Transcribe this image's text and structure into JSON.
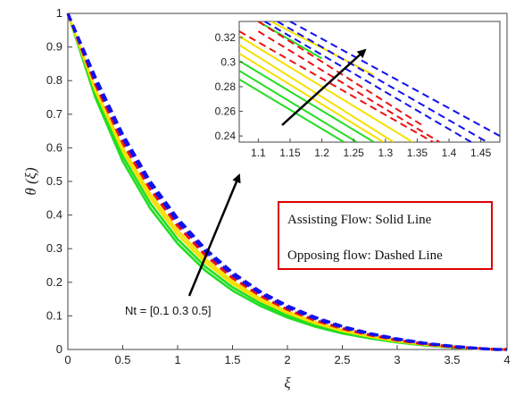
{
  "chart_data": {
    "type": "line",
    "xlabel": "ξ",
    "ylabel": "θ (ξ)",
    "xlim": [
      0,
      4
    ],
    "ylim": [
      0,
      1
    ],
    "xticks": [
      "0",
      "0.5",
      "1",
      "1.5",
      "2",
      "2.5",
      "3",
      "3.5",
      "4"
    ],
    "yticks": [
      "0",
      "0.1",
      "0.2",
      "0.3",
      "0.4",
      "0.5",
      "0.6",
      "0.7",
      "0.8",
      "0.9",
      "1"
    ],
    "x": [
      0,
      0.25,
      0.5,
      0.75,
      1,
      1.25,
      1.5,
      1.75,
      2,
      2.25,
      2.5,
      2.75,
      3,
      3.25,
      3.5,
      3.75,
      3.9,
      4
    ],
    "series": [
      {
        "style": "solid",
        "color": "#22dd22",
        "values": [
          1.0,
          0.75,
          0.56,
          0.42,
          0.315,
          0.235,
          0.175,
          0.13,
          0.095,
          0.068,
          0.048,
          0.033,
          0.021,
          0.012,
          0.006,
          0.002,
          0.0,
          0.0
        ]
      },
      {
        "style": "solid",
        "color": "#22dd22",
        "values": [
          1.0,
          0.76,
          0.575,
          0.435,
          0.328,
          0.247,
          0.185,
          0.138,
          0.101,
          0.073,
          0.051,
          0.035,
          0.022,
          0.013,
          0.006,
          0.002,
          0.0,
          0.0
        ]
      },
      {
        "style": "solid",
        "color": "#f5e000",
        "values": [
          1.0,
          0.77,
          0.59,
          0.45,
          0.342,
          0.259,
          0.195,
          0.146,
          0.108,
          0.078,
          0.055,
          0.038,
          0.024,
          0.014,
          0.007,
          0.002,
          0.0,
          0.0
        ]
      },
      {
        "style": "solid",
        "color": "#f5e000",
        "values": [
          1.0,
          0.775,
          0.6,
          0.462,
          0.354,
          0.269,
          0.203,
          0.152,
          0.113,
          0.082,
          0.058,
          0.04,
          0.026,
          0.015,
          0.007,
          0.002,
          0.0,
          0.0
        ]
      },
      {
        "style": "dashed",
        "color": "#ee1111",
        "values": [
          1.0,
          0.79,
          0.615,
          0.477,
          0.368,
          0.281,
          0.213,
          0.16,
          0.119,
          0.087,
          0.062,
          0.043,
          0.028,
          0.016,
          0.008,
          0.003,
          0.0,
          0.0
        ]
      },
      {
        "style": "dashed",
        "color": "#1111ee",
        "values": [
          1.0,
          0.8,
          0.63,
          0.49,
          0.38,
          0.292,
          0.222,
          0.167,
          0.125,
          0.092,
          0.066,
          0.046,
          0.03,
          0.018,
          0.009,
          0.003,
          0.0,
          0.0
        ]
      },
      {
        "style": "dashed",
        "color": "#1111ee",
        "values": [
          1.0,
          0.81,
          0.64,
          0.5,
          0.39,
          0.3,
          0.229,
          0.173,
          0.13,
          0.096,
          0.069,
          0.048,
          0.032,
          0.019,
          0.01,
          0.003,
          0.0,
          0.0
        ]
      }
    ],
    "annotation": "Nt = [0.1  0.3  0.5]",
    "legend_box": {
      "lines": [
        "Assisting Flow:  Solid Line",
        "Opposing flow: Dashed Line"
      ],
      "border_color": "#dd0000",
      "placement": "right-middle"
    },
    "inset": {
      "xlim": [
        1.07,
        1.48
      ],
      "ylim": [
        0.235,
        0.333
      ],
      "xticks": [
        "1.1",
        "1.15",
        "1.2",
        "1.25",
        "1.3",
        "1.35",
        "1.4",
        "1.45"
      ],
      "yticks": [
        "0.24",
        "0.26",
        "0.28",
        "0.3",
        "0.32"
      ],
      "placement": "top-right",
      "lines": [
        {
          "style": "solid",
          "color": "#22dd22",
          "x": [
            1.07,
            1.235
          ],
          "y": [
            0.286,
            0.235
          ]
        },
        {
          "style": "solid",
          "color": "#22dd22",
          "x": [
            1.07,
            1.255
          ],
          "y": [
            0.293,
            0.235
          ]
        },
        {
          "style": "solid",
          "color": "#22dd22",
          "x": [
            1.07,
            1.282
          ],
          "y": [
            0.301,
            0.235
          ]
        },
        {
          "style": "solid",
          "color": "#f5e000",
          "x": [
            1.07,
            1.297
          ],
          "y": [
            0.307,
            0.235
          ]
        },
        {
          "style": "solid",
          "color": "#f5e000",
          "x": [
            1.07,
            1.313
          ],
          "y": [
            0.314,
            0.235
          ]
        },
        {
          "style": "solid",
          "color": "#f5e000",
          "x": [
            1.07,
            1.343
          ],
          "y": [
            0.321,
            0.235
          ]
        },
        {
          "style": "solid",
          "color": "#22dd22",
          "x": [
            1.1,
            1.2
          ],
          "y": [
            0.333,
            0.303
          ]
        },
        {
          "style": "solid",
          "color": "#f5e000",
          "x": [
            1.12,
            1.28
          ],
          "y": [
            0.333,
            0.29
          ]
        },
        {
          "style": "dashed",
          "color": "#ee1111",
          "x": [
            1.1,
            1.36
          ],
          "y": [
            0.333,
            0.248
          ]
        },
        {
          "style": "dashed",
          "color": "#ee1111",
          "x": [
            1.1,
            1.385
          ],
          "y": [
            0.325,
            0.235
          ]
        },
        {
          "style": "dashed",
          "color": "#ee1111",
          "x": [
            1.07,
            1.375
          ],
          "y": [
            0.325,
            0.235
          ]
        },
        {
          "style": "dashed",
          "color": "#1111ee",
          "x": [
            1.11,
            1.435
          ],
          "y": [
            0.333,
            0.235
          ]
        },
        {
          "style": "dashed",
          "color": "#1111ee",
          "x": [
            1.13,
            1.46
          ],
          "y": [
            0.333,
            0.235
          ]
        },
        {
          "style": "dashed",
          "color": "#1111ee",
          "x": [
            1.15,
            1.48
          ],
          "y": [
            0.333,
            0.24
          ]
        }
      ]
    }
  }
}
